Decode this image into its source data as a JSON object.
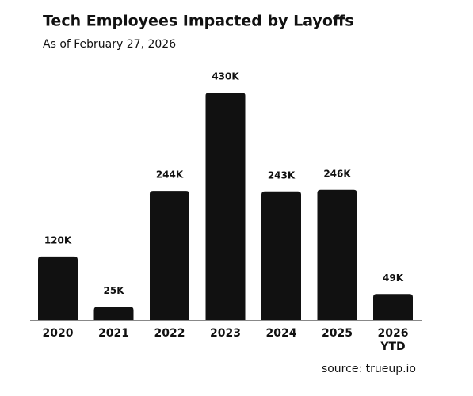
{
  "chart_data": {
    "type": "bar",
    "title": "Tech Employees Impacted by Layoffs",
    "subtitle": "As of February 27, 2026",
    "categories": [
      "2020",
      "2021",
      "2022",
      "2023",
      "2024",
      "2025",
      "2026 YTD"
    ],
    "values": [
      120,
      25,
      244,
      430,
      243,
      246,
      49
    ],
    "value_labels": [
      "120K",
      "25K",
      "244K",
      "430K",
      "243K",
      "246K",
      "49K"
    ],
    "color": "#111111",
    "source": "source: trueup.io"
  }
}
